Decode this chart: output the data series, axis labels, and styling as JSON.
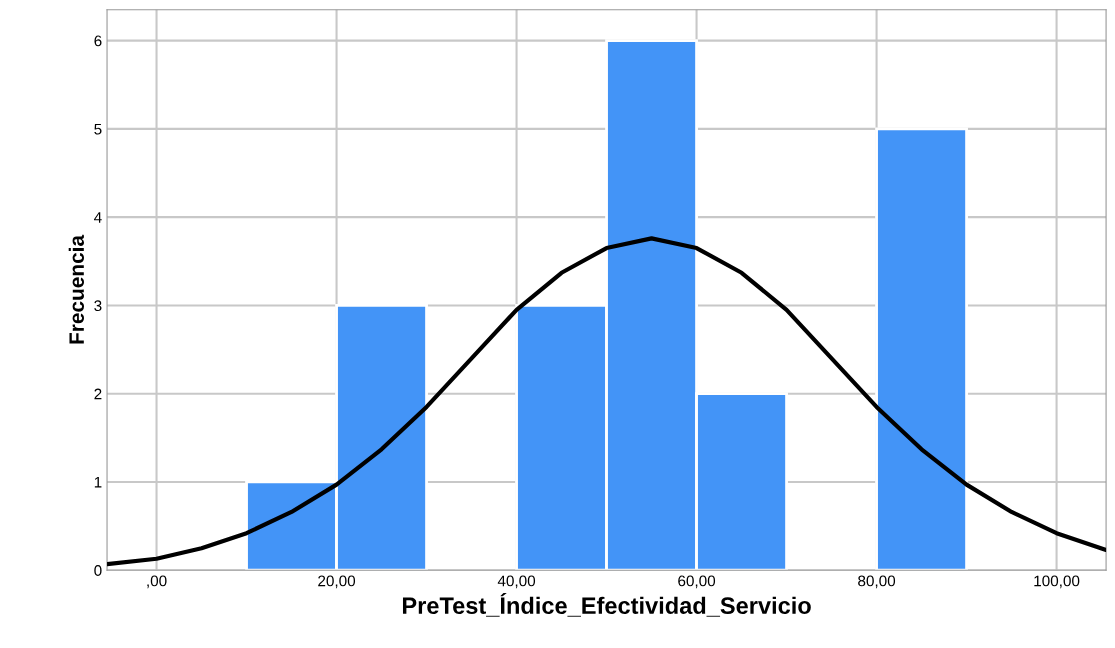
{
  "chart_data": {
    "type": "histogram",
    "xlabel": "PreTest_Índice_Efectividad_Servicio",
    "ylabel": "Frecuencia",
    "bins": [
      10,
      20,
      30,
      40,
      50,
      60,
      70,
      80,
      90
    ],
    "values": [
      1,
      3,
      0,
      3,
      6,
      2,
      0,
      5
    ],
    "color": "#4394f7",
    "series": [
      {
        "type": "line",
        "color": "#000000",
        "x": [
          -5.5,
          0,
          5,
          10,
          15,
          20,
          25,
          30,
          35,
          40,
          45,
          50,
          55,
          60,
          65,
          70,
          75,
          80,
          85,
          90,
          95,
          100,
          105.5
        ],
        "values": [
          0.07,
          0.13,
          0.25,
          0.42,
          0.66,
          0.97,
          1.37,
          1.85,
          2.4,
          2.95,
          3.37,
          3.65,
          3.76,
          3.65,
          3.37,
          2.95,
          2.4,
          1.85,
          1.37,
          0.97,
          0.66,
          0.42,
          0.23
        ]
      }
    ],
    "xlim": [
      -5.5,
      105.5
    ],
    "ylim": [
      0,
      6.35
    ],
    "xticks": [
      {
        "value": 0,
        "label": ",00"
      },
      {
        "value": 20,
        "label": "20,00"
      },
      {
        "value": 40,
        "label": "40,00"
      },
      {
        "value": 60,
        "label": "60,00"
      },
      {
        "value": 80,
        "label": "80,00"
      },
      {
        "value": 100,
        "label": "100,00"
      }
    ],
    "yticks": [
      0,
      1,
      2,
      3,
      4,
      5,
      6
    ],
    "grid": true,
    "legend": false
  }
}
